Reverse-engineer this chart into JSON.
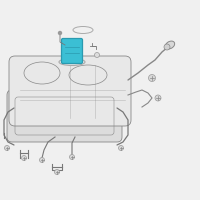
{
  "bg_color": "#f0f0f0",
  "tank_stroke": "#888888",
  "tank_fill": "#e8e8e8",
  "skid_stroke": "#888888",
  "skid_fill": "#dcdcdc",
  "highlight_color": "#3bbfd4",
  "highlight_stroke": "#2a9ab0",
  "line_color": "#777777",
  "bolt_color": "#999999",
  "pipe_color": "#888888",
  "white": "#f5f5f5"
}
